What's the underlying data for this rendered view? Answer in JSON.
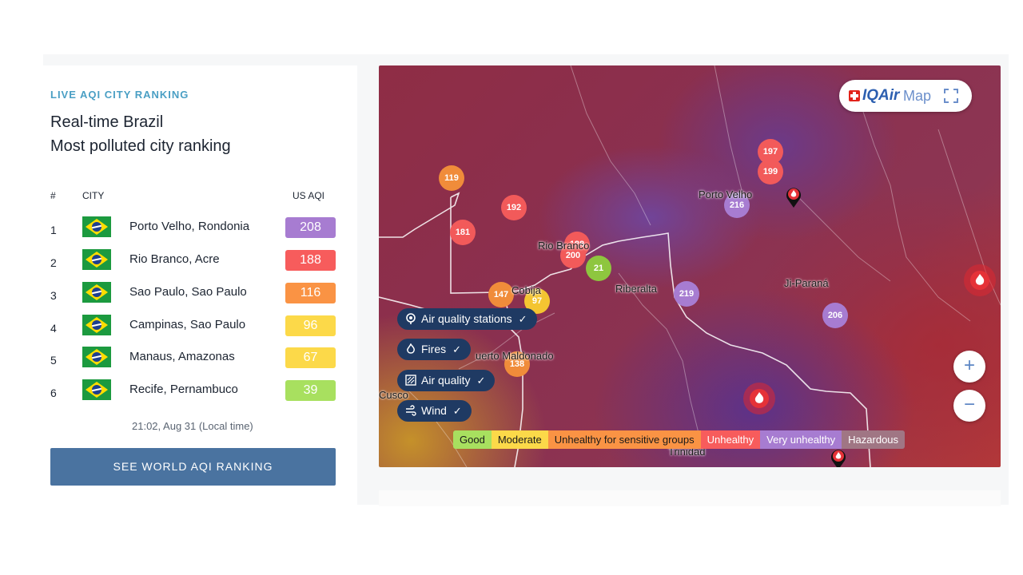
{
  "ranking": {
    "eyebrow": "LIVE AQI CITY RANKING",
    "title_line1": "Real-time Brazil",
    "title_line2": "Most polluted city ranking",
    "headers": {
      "rank": "#",
      "city": "CITY",
      "aqi": "US AQI"
    },
    "rows": [
      {
        "rank": "1",
        "city": "Porto Velho, Rondonia",
        "aqi": "208",
        "color": "#a77cd1"
      },
      {
        "rank": "2",
        "city": "Rio Branco, Acre",
        "aqi": "188",
        "color": "#f75c5c"
      },
      {
        "rank": "3",
        "city": "Sao Paulo, Sao Paulo",
        "aqi": "116",
        "color": "#fa9344"
      },
      {
        "rank": "4",
        "city": "Campinas, Sao Paulo",
        "aqi": "96",
        "color": "#fcd949"
      },
      {
        "rank": "5",
        "city": "Manaus, Amazonas",
        "aqi": "67",
        "color": "#fcd949"
      },
      {
        "rank": "6",
        "city": "Recife, Pernambuco",
        "aqi": "39",
        "color": "#a8e05f"
      }
    ],
    "timestamp": "21:02, Aug 31 (Local time)",
    "world_button": "SEE WORLD AQI RANKING"
  },
  "map": {
    "brand_iq": "IQAir",
    "brand_map": "Map",
    "markers": [
      {
        "value": "119",
        "color": "#f08c3a"
      },
      {
        "value": "192",
        "color": "#f25a5a"
      },
      {
        "value": "181",
        "color": "#f25a5a"
      },
      {
        "value": "188",
        "color": "#f25a5a"
      },
      {
        "value": "200",
        "color": "#f25a5a"
      },
      {
        "value": "21",
        "color": "#8ec63f"
      },
      {
        "value": "147",
        "color": "#f08c3a"
      },
      {
        "value": "97",
        "color": "#f4c531"
      },
      {
        "value": "138",
        "color": "#f08c3a"
      },
      {
        "value": "197",
        "color": "#f25a5a"
      },
      {
        "value": "199",
        "color": "#f25a5a"
      },
      {
        "value": "216",
        "color": "#a77cd1"
      },
      {
        "value": "219",
        "color": "#a77cd1"
      },
      {
        "value": "206",
        "color": "#a77cd1"
      }
    ],
    "labels": {
      "porto_velho": "Porto Velho",
      "rio_branco": "Rio Branco",
      "riberalta": "Riberalta",
      "ji_parana": "Ji-Paraná",
      "cobija": "Cobija",
      "puerto_maldonado": "uerto Maldonado",
      "cusco": "Cusco",
      "trinidad": "Trinidad"
    },
    "layers": {
      "stations": "Air quality stations",
      "fires": "Fires",
      "air_quality": "Air quality",
      "wind": "Wind"
    },
    "zoom_in": "+",
    "zoom_out": "−",
    "legend": [
      {
        "label": "Good",
        "color": "#a8e05f"
      },
      {
        "label": "Moderate",
        "color": "#fcd949"
      },
      {
        "label": "Unhealthy for sensitive groups",
        "color": "#fa9344"
      },
      {
        "label": "Unhealthy",
        "color": "#f75c5c"
      },
      {
        "label": "Very unhealthy",
        "color": "#a77cd1"
      },
      {
        "label": "Hazardous",
        "color": "#a07684"
      }
    ]
  }
}
